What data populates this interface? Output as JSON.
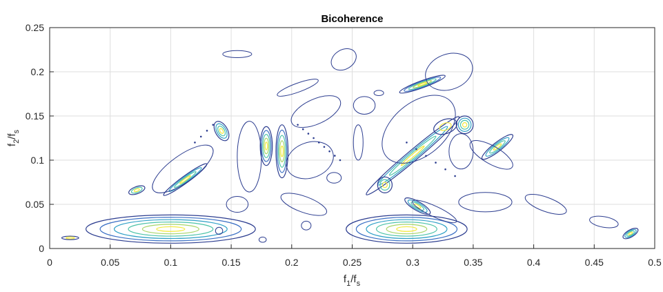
{
  "chart_data": {
    "type": "contour",
    "title": "Bicoherence",
    "xlabel": {
      "main": "f",
      "sub1": "1",
      "mid": "/f",
      "sub2": "s"
    },
    "ylabel": {
      "main": "f",
      "sub1": "2",
      "mid": "/f",
      "sub2": "s"
    },
    "xlim": [
      0,
      0.5
    ],
    "ylim": [
      0,
      0.25
    ],
    "xticks": [
      0,
      0.05,
      0.1,
      0.15,
      0.2,
      0.25,
      0.3,
      0.35,
      0.4,
      0.45,
      0.5
    ],
    "xtick_labels": [
      "0",
      "0.05",
      "0.1",
      "0.15",
      "0.2",
      "0.25",
      "0.3",
      "0.35",
      "0.4",
      "0.45",
      "0.5"
    ],
    "yticks": [
      0,
      0.05,
      0.1,
      0.15,
      0.2,
      0.25
    ],
    "ytick_labels": [
      "0",
      "0.05",
      "0.1",
      "0.15",
      "0.2",
      "0.25"
    ],
    "grid": true,
    "colormap": [
      "#2b3c8f",
      "#3a6fc4",
      "#2ea0c6",
      "#4cc3a8",
      "#a8d56a",
      "#f2e93c"
    ],
    "regions": [
      {
        "center": [
          0.1,
          0.022
        ],
        "size": [
          0.07,
          0.016
        ],
        "levels": 6,
        "angle": 0
      },
      {
        "center": [
          0.295,
          0.022
        ],
        "size": [
          0.05,
          0.016
        ],
        "levels": 6,
        "angle": 0
      },
      {
        "center": [
          0.304,
          0.048
        ],
        "size": [
          0.012,
          0.005
        ],
        "levels": 4,
        "angle": -30
      },
      {
        "center": [
          0.179,
          0.116
        ],
        "size": [
          0.005,
          0.022
        ],
        "levels": 5,
        "angle": 0
      },
      {
        "center": [
          0.192,
          0.11
        ],
        "size": [
          0.005,
          0.03
        ],
        "levels": 5,
        "angle": 0
      },
      {
        "center": [
          0.3,
          0.105
        ],
        "size": [
          0.05,
          0.006
        ],
        "levels": 4,
        "angle": 40
      },
      {
        "center": [
          0.308,
          0.186
        ],
        "size": [
          0.02,
          0.004
        ],
        "levels": 5,
        "angle": 20
      },
      {
        "center": [
          0.112,
          0.078
        ],
        "size": [
          0.022,
          0.004
        ],
        "levels": 4,
        "angle": 36
      },
      {
        "center": [
          0.37,
          0.115
        ],
        "size": [
          0.016,
          0.005
        ],
        "levels": 4,
        "angle": 38
      },
      {
        "center": [
          0.072,
          0.066
        ],
        "size": [
          0.007,
          0.004
        ],
        "levels": 3,
        "angle": 20
      },
      {
        "center": [
          0.48,
          0.017
        ],
        "size": [
          0.007,
          0.004
        ],
        "levels": 4,
        "angle": 30
      },
      {
        "center": [
          0.142,
          0.133
        ],
        "size": [
          0.005,
          0.012
        ],
        "levels": 4,
        "angle": 30
      },
      {
        "center": [
          0.343,
          0.14
        ],
        "size": [
          0.007,
          0.01
        ],
        "levels": 4,
        "angle": 0
      },
      {
        "center": [
          0.277,
          0.072
        ],
        "size": [
          0.006,
          0.009
        ],
        "levels": 3,
        "angle": 0
      },
      {
        "center": [
          0.017,
          0.012
        ],
        "size": [
          0.007,
          0.002
        ],
        "levels": 2,
        "angle": 0
      },
      {
        "center": [
          0.327,
          0.138
        ],
        "size": [
          0.01,
          0.008
        ],
        "levels": 2,
        "angle": 20
      }
    ],
    "outlines": [
      {
        "center": [
          0.243,
          0.214
        ],
        "size": [
          0.011,
          0.011
        ],
        "angle": 30
      },
      {
        "center": [
          0.155,
          0.22
        ],
        "size": [
          0.012,
          0.004
        ],
        "angle": 0
      },
      {
        "center": [
          0.22,
          0.155
        ],
        "size": [
          0.022,
          0.014
        ],
        "angle": 25
      },
      {
        "center": [
          0.26,
          0.162
        ],
        "size": [
          0.009,
          0.01
        ],
        "angle": 0
      },
      {
        "center": [
          0.205,
          0.182
        ],
        "size": [
          0.018,
          0.005
        ],
        "angle": 20
      },
      {
        "center": [
          0.36,
          0.0525
        ],
        "size": [
          0.022,
          0.011
        ],
        "angle": 0
      },
      {
        "center": [
          0.21,
          0.05
        ],
        "size": [
          0.02,
          0.009
        ],
        "angle": -20
      },
      {
        "center": [
          0.155,
          0.05
        ],
        "size": [
          0.009,
          0.009
        ],
        "angle": 0
      },
      {
        "center": [
          0.41,
          0.05
        ],
        "size": [
          0.018,
          0.008
        ],
        "angle": -20
      },
      {
        "center": [
          0.458,
          0.03
        ],
        "size": [
          0.012,
          0.006
        ],
        "angle": -10
      },
      {
        "center": [
          0.305,
          0.135
        ],
        "size": [
          0.035,
          0.03
        ],
        "angle": 40
      },
      {
        "center": [
          0.33,
          0.2
        ],
        "size": [
          0.02,
          0.02
        ],
        "angle": 20
      },
      {
        "center": [
          0.165,
          0.104
        ],
        "size": [
          0.01,
          0.04
        ],
        "angle": 0
      },
      {
        "center": [
          0.215,
          0.1
        ],
        "size": [
          0.02,
          0.02
        ],
        "angle": 20
      },
      {
        "center": [
          0.11,
          0.09
        ],
        "size": [
          0.03,
          0.015
        ],
        "angle": 36
      },
      {
        "center": [
          0.365,
          0.106
        ],
        "size": [
          0.02,
          0.01
        ],
        "angle": -30
      },
      {
        "center": [
          0.34,
          0.11
        ],
        "size": [
          0.01,
          0.02
        ],
        "angle": 0
      },
      {
        "center": [
          0.255,
          0.12
        ],
        "size": [
          0.004,
          0.02
        ],
        "angle": 0
      },
      {
        "center": [
          0.235,
          0.08
        ],
        "size": [
          0.006,
          0.006
        ],
        "angle": 0
      },
      {
        "center": [
          0.272,
          0.176
        ],
        "size": [
          0.004,
          0.003
        ],
        "angle": 0
      },
      {
        "center": [
          0.14,
          0.02
        ],
        "size": [
          0.003,
          0.004
        ],
        "angle": 0
      },
      {
        "center": [
          0.176,
          0.01
        ],
        "size": [
          0.003,
          0.003
        ],
        "angle": 0
      },
      {
        "center": [
          0.212,
          0.026
        ],
        "size": [
          0.004,
          0.005
        ],
        "angle": 0
      },
      {
        "center": [
          0.318,
          0.042
        ],
        "size": [
          0.02,
          0.006
        ],
        "angle": -25
      }
    ],
    "dot_rows": [
      {
        "from": [
          0.295,
          0.12
        ],
        "to": [
          0.335,
          0.082
        ],
        "count": 6
      },
      {
        "from": [
          0.205,
          0.14
        ],
        "to": [
          0.24,
          0.1
        ],
        "count": 9
      },
      {
        "from": [
          0.12,
          0.12
        ],
        "to": [
          0.135,
          0.14
        ],
        "count": 4
      }
    ]
  }
}
